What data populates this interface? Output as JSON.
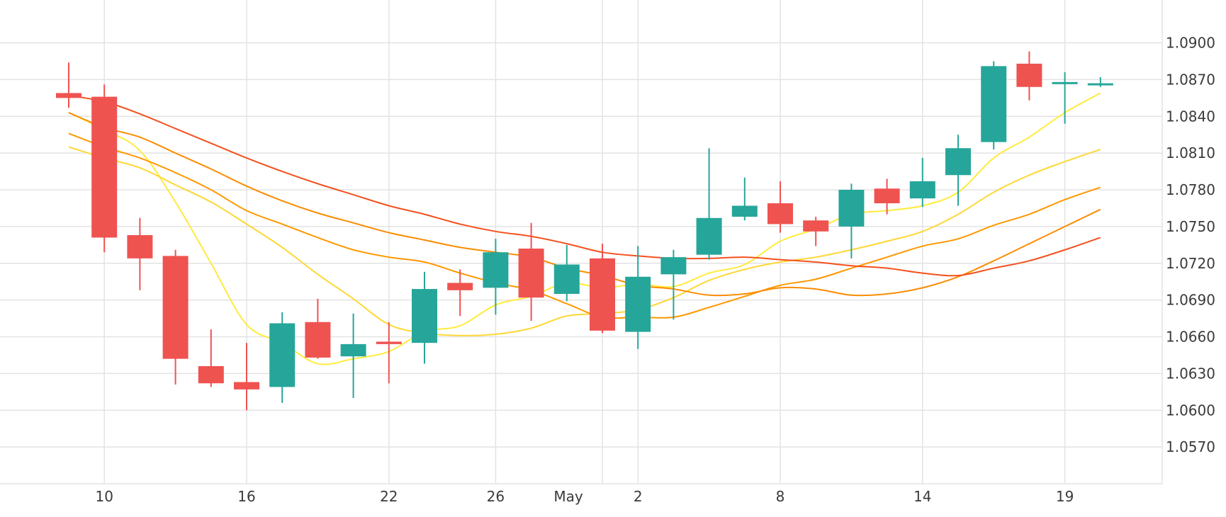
{
  "chart_data": {
    "type": "candlestick",
    "title": "",
    "xlabel": "",
    "ylabel": "",
    "ylim": [
      1.054,
      1.0935
    ],
    "grid": true,
    "y_ticks": [
      "1.0900",
      "1.0870",
      "1.0840",
      "1.0810",
      "1.0780",
      "1.0750",
      "1.0720",
      "1.0690",
      "1.0660",
      "1.0630",
      "1.0600",
      "1.0570"
    ],
    "x_ticks": [
      {
        "label": "10",
        "index": 1
      },
      {
        "label": "16",
        "index": 5
      },
      {
        "label": "22",
        "index": 9
      },
      {
        "label": "26",
        "index": 12
      },
      {
        "label": "May",
        "index": 15
      },
      {
        "label": "2",
        "index": 16
      },
      {
        "label": "8",
        "index": 20
      },
      {
        "label": "14",
        "index": 24
      },
      {
        "label": "19",
        "index": 28
      }
    ],
    "colors": {
      "up": "#26a69a",
      "down": "#ef5350"
    },
    "candles": [
      {
        "open": 1.0859,
        "high": 1.0884,
        "low": 1.0847,
        "close": 1.0855
      },
      {
        "open": 1.0856,
        "high": 1.0866,
        "low": 1.0729,
        "close": 1.0741
      },
      {
        "open": 1.0743,
        "high": 1.0757,
        "low": 1.0698,
        "close": 1.0724
      },
      {
        "open": 1.0726,
        "high": 1.0731,
        "low": 1.0621,
        "close": 1.0642
      },
      {
        "open": 1.0636,
        "high": 1.0666,
        "low": 1.0619,
        "close": 1.0622
      },
      {
        "open": 1.0623,
        "high": 1.0655,
        "low": 1.06,
        "close": 1.0617
      },
      {
        "open": 1.0619,
        "high": 1.068,
        "low": 1.0606,
        "close": 1.0671
      },
      {
        "open": 1.0672,
        "high": 1.0691,
        "low": 1.0642,
        "close": 1.0643
      },
      {
        "open": 1.0644,
        "high": 1.0679,
        "low": 1.061,
        "close": 1.0654
      },
      {
        "open": 1.0656,
        "high": 1.0672,
        "low": 1.0622,
        "close": 1.0654
      },
      {
        "open": 1.0655,
        "high": 1.0713,
        "low": 1.0638,
        "close": 1.0699
      },
      {
        "open": 1.0704,
        "high": 1.0715,
        "low": 1.0677,
        "close": 1.0698
      },
      {
        "open": 1.07,
        "high": 1.074,
        "low": 1.0678,
        "close": 1.0729
      },
      {
        "open": 1.0732,
        "high": 1.0753,
        "low": 1.0673,
        "close": 1.0692
      },
      {
        "open": 1.0695,
        "high": 1.0735,
        "low": 1.0689,
        "close": 1.0719
      },
      {
        "open": 1.0724,
        "high": 1.0736,
        "low": 1.0663,
        "close": 1.0665
      },
      {
        "open": 1.0664,
        "high": 1.0734,
        "low": 1.065,
        "close": 1.0709
      },
      {
        "open": 1.0711,
        "high": 1.0731,
        "low": 1.0674,
        "close": 1.0725
      },
      {
        "open": 1.0727,
        "high": 1.0814,
        "low": 1.0723,
        "close": 1.0757
      },
      {
        "open": 1.0758,
        "high": 1.079,
        "low": 1.0755,
        "close": 1.0767
      },
      {
        "open": 1.0769,
        "high": 1.0787,
        "low": 1.0745,
        "close": 1.0752
      },
      {
        "open": 1.0755,
        "high": 1.0758,
        "low": 1.0734,
        "close": 1.0746
      },
      {
        "open": 1.075,
        "high": 1.0785,
        "low": 1.0724,
        "close": 1.078
      },
      {
        "open": 1.0781,
        "high": 1.0789,
        "low": 1.076,
        "close": 1.0769
      },
      {
        "open": 1.0773,
        "high": 1.0806,
        "low": 1.0766,
        "close": 1.0787
      },
      {
        "open": 1.0792,
        "high": 1.0825,
        "low": 1.0767,
        "close": 1.0814
      },
      {
        "open": 1.0819,
        "high": 1.0885,
        "low": 1.0813,
        "close": 1.0881
      },
      {
        "open": 1.0883,
        "high": 1.0893,
        "low": 1.0853,
        "close": 1.0864
      },
      {
        "open": 1.0867,
        "high": 1.0876,
        "low": 1.0834,
        "close": 1.0868
      },
      {
        "open": 1.0866,
        "high": 1.0872,
        "low": 1.0864,
        "close": 1.0867
      }
    ],
    "moving_averages": [
      {
        "color": "#ffeb3b",
        "values": [
          1.0843,
          1.0829,
          1.0812,
          1.077,
          1.072,
          1.067,
          1.0655,
          1.0638,
          1.0642,
          1.0648,
          1.0664,
          1.0669,
          1.0686,
          1.0693,
          1.0704,
          1.07,
          1.0703,
          1.0701,
          1.0712,
          1.0719,
          1.0738,
          1.0748,
          1.076,
          1.0763,
          1.0767,
          1.0778,
          1.0806,
          1.0823,
          1.0843,
          1.0859
        ]
      },
      {
        "color": "#fdd835",
        "values": [
          1.0815,
          1.0806,
          1.0798,
          1.0784,
          1.077,
          1.0752,
          1.0733,
          1.0711,
          1.0691,
          1.067,
          1.0663,
          1.0661,
          1.0662,
          1.0667,
          1.0677,
          1.0679,
          1.0682,
          1.0692,
          1.0706,
          1.0715,
          1.0721,
          1.0725,
          1.0731,
          1.0738,
          1.0746,
          1.076,
          1.0778,
          1.0792,
          1.0803,
          1.0813
        ]
      },
      {
        "color": "#ff9800",
        "values": [
          1.0826,
          1.0815,
          1.0806,
          1.0794,
          1.078,
          1.0763,
          1.0752,
          1.0741,
          1.0731,
          1.0725,
          1.0721,
          1.0712,
          1.0704,
          1.0698,
          1.0687,
          1.0676,
          1.0676,
          1.0676,
          1.0684,
          1.0693,
          1.0702,
          1.0707,
          1.0716,
          1.0725,
          1.0734,
          1.074,
          1.0751,
          1.076,
          1.0772,
          1.0782
        ]
      },
      {
        "color": "#fb8c00",
        "values": [
          1.0843,
          1.0831,
          1.0823,
          1.081,
          1.0797,
          1.0783,
          1.0771,
          1.0761,
          1.0753,
          1.0745,
          1.0739,
          1.0733,
          1.0729,
          1.0725,
          1.0716,
          1.071,
          1.0702,
          1.0699,
          1.0694,
          1.0695,
          1.07,
          1.0699,
          1.0694,
          1.0695,
          1.07,
          1.0709,
          1.0722,
          1.0736,
          1.075,
          1.0764
        ]
      },
      {
        "color": "#f4511e",
        "values": [
          1.0857,
          1.0852,
          1.0842,
          1.083,
          1.0818,
          1.0806,
          1.0795,
          1.0785,
          1.0776,
          1.0767,
          1.076,
          1.0752,
          1.0746,
          1.0742,
          1.0736,
          1.0729,
          1.0726,
          1.0724,
          1.0724,
          1.0725,
          1.0723,
          1.0721,
          1.0718,
          1.0716,
          1.0712,
          1.071,
          1.0716,
          1.0722,
          1.0731,
          1.0741
        ]
      }
    ]
  }
}
